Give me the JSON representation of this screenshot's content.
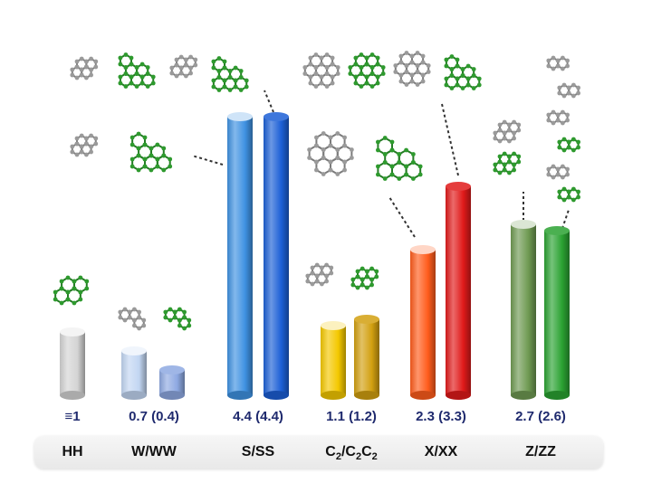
{
  "chart_data": {
    "type": "bar",
    "categories": [
      "HH",
      "W/WW",
      "S/SS",
      "C2/C2C2",
      "X/XX",
      "Z/ZZ"
    ],
    "category_labels_html": [
      "HH",
      "W/WW",
      "S/SS",
      "C<sub>2</sub>/C<sub>2</sub>C<sub>2</sub>",
      "X/XX",
      "Z/ZZ"
    ],
    "value_labels": [
      "≡1",
      "0.7 (0.4)",
      "4.4 (4.4)",
      "1.1 (1.2)",
      "2.3 (3.3)",
      "2.7 (2.6)"
    ],
    "bars": [
      {
        "category": "HH",
        "value": 1.0,
        "color": "#d4d4d4"
      },
      {
        "category": "W",
        "value": 0.7,
        "color": "#c2d6f2"
      },
      {
        "category": "WW",
        "value": 0.4,
        "color": "#8ea9e2"
      },
      {
        "category": "S",
        "value": 4.4,
        "color": "#3f92e2"
      },
      {
        "category": "SS",
        "value": 4.4,
        "color": "#1c5fd6"
      },
      {
        "category": "C2",
        "value": 1.1,
        "color": "#f4c800"
      },
      {
        "category": "C2C2",
        "value": 1.2,
        "color": "#d2a010"
      },
      {
        "category": "X",
        "value": 2.3,
        "color": "#ff5c1c"
      },
      {
        "category": "XX",
        "value": 3.3,
        "color": "#e01a1a"
      },
      {
        "category": "Z",
        "value": 2.7,
        "color": "#6f9a52"
      },
      {
        "category": "ZZ",
        "value": 2.6,
        "color": "#2ba232"
      }
    ],
    "ylim": [
      0,
      4.6
    ],
    "grid": false,
    "title": "",
    "xlabel": "",
    "ylabel": ""
  },
  "colors": {
    "molecule_green": "#2e9a2e",
    "molecule_gray": "#9a9a9a",
    "value_text": "#1f2a6e"
  }
}
